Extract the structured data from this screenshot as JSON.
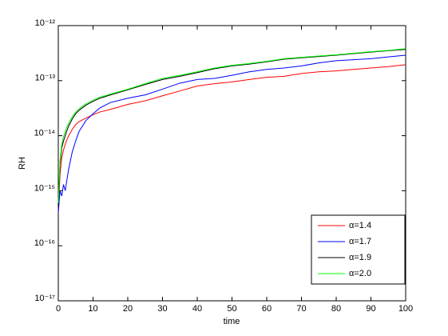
{
  "chart_data": {
    "type": "line",
    "xlabel": "time",
    "ylabel": "RH",
    "x": [
      0,
      0.5,
      1,
      1.5,
      2,
      2.5,
      3,
      4,
      5,
      6,
      8,
      10,
      12,
      15,
      20,
      25,
      30,
      35,
      40,
      45,
      50,
      55,
      60,
      65,
      70,
      75,
      80,
      85,
      90,
      95,
      100
    ],
    "series": [
      {
        "name": "α=1.4",
        "color": "#ff0000",
        "values": [
          4e-16,
          2e-15,
          4e-15,
          5.5e-15,
          7e-15,
          8.5e-15,
          1e-14,
          1.3e-14,
          1.6e-14,
          1.8e-14,
          2.1e-14,
          2.4e-14,
          2.7e-14,
          3e-14,
          3.7e-14,
          4.3e-14,
          5.3e-14,
          6.5e-14,
          8e-14,
          8.8e-14,
          9.5e-14,
          1.05e-13,
          1.15e-13,
          1.2e-13,
          1.35e-13,
          1.45e-13,
          1.5e-13,
          1.6e-13,
          1.7e-13,
          1.8e-13,
          1.95e-13
        ]
      },
      {
        "name": "α=1.7",
        "color": "#0000ff",
        "values": [
          4e-16,
          1e-15,
          8e-16,
          1.3e-15,
          1e-15,
          1.6e-15,
          2.5e-15,
          5e-15,
          8e-15,
          1.2e-14,
          1.9e-14,
          2.5e-14,
          3.2e-14,
          4e-14,
          4.8e-14,
          5.5e-14,
          7e-14,
          9e-14,
          1.05e-13,
          1.1e-13,
          1.25e-13,
          1.45e-13,
          1.6e-13,
          1.7e-13,
          1.85e-13,
          2.1e-13,
          2.3e-13,
          2.4e-13,
          2.5e-13,
          2.7e-13,
          2.9e-13
        ]
      },
      {
        "name": "α=1.9",
        "color": "#000000",
        "values": [
          5e-16,
          3e-15,
          6e-15,
          8e-15,
          1e-14,
          1.25e-14,
          1.5e-14,
          2e-14,
          2.5e-14,
          2.9e-14,
          3.6e-14,
          4.2e-14,
          4.8e-14,
          5.5e-14,
          6.8e-14,
          8.5e-14,
          1.05e-13,
          1.2e-13,
          1.4e-13,
          1.65e-13,
          1.85e-13,
          2e-13,
          2.2e-13,
          2.45e-13,
          2.6e-13,
          2.75e-13,
          2.9e-13,
          3.1e-13,
          3.3e-13,
          3.5e-13,
          3.7e-13
        ]
      },
      {
        "name": "α=2.0",
        "color": "#00ff00",
        "values": [
          6e-16,
          3.5e-15,
          7e-15,
          9.5e-15,
          1.2e-14,
          1.45e-14,
          1.7e-14,
          2.2e-14,
          2.7e-14,
          3.1e-14,
          3.8e-14,
          4.4e-14,
          5e-14,
          5.7e-14,
          7e-14,
          8.8e-14,
          1.1e-13,
          1.25e-13,
          1.45e-13,
          1.7e-13,
          1.9e-13,
          2.05e-13,
          2.25e-13,
          2.5e-13,
          2.65e-13,
          2.8e-13,
          2.95e-13,
          3.15e-13,
          3.35e-13,
          3.55e-13,
          3.8e-13
        ]
      }
    ],
    "xlim": [
      0,
      100
    ],
    "xticks": [
      0,
      10,
      20,
      30,
      40,
      50,
      60,
      70,
      80,
      90,
      100
    ],
    "ylim": [
      1e-17,
      1e-12
    ],
    "ylog": true,
    "yticks": [
      {
        "value": 1e-17,
        "label": "10⁻¹⁷"
      },
      {
        "value": 1e-16,
        "label": "10⁻¹⁶"
      },
      {
        "value": 1e-15,
        "label": "10⁻¹⁵"
      },
      {
        "value": 1e-14,
        "label": "10⁻¹⁴"
      },
      {
        "value": 1e-13,
        "label": "10⁻¹³"
      },
      {
        "value": 1e-12,
        "label": "10⁻¹²"
      }
    ],
    "legend": "southeast",
    "grid": false
  }
}
